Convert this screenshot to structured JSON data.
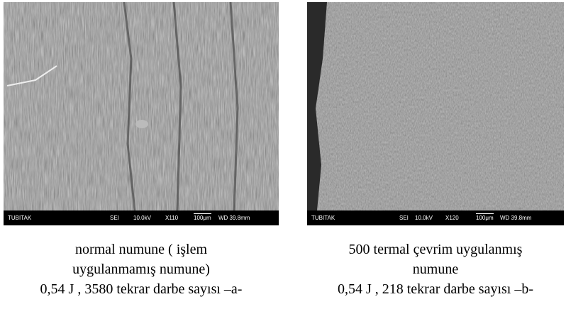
{
  "panels": [
    {
      "image": {
        "bar": {
          "org": "TUBITAK",
          "mode": "SEI",
          "voltage": "10.0kV",
          "magnification": "X110",
          "scale": "100μm",
          "working_distance": "WD 39.8mm"
        }
      },
      "caption": [
        "normal numune ( işlem",
        "uygulanmamış numune)",
        "0,54 J , 3580 tekrar darbe sayısı –a-"
      ]
    },
    {
      "image": {
        "bar": {
          "org": "TUBITAK",
          "mode": "SEI",
          "voltage": "10.0kV",
          "magnification": "X120",
          "scale": "100μm",
          "working_distance": "WD 39.8mm"
        }
      },
      "caption": [
        "500 termal çevrim uygulanmış",
        "numune",
        "0,54 J , 218 tekrar darbe sayısı –b-"
      ]
    }
  ]
}
